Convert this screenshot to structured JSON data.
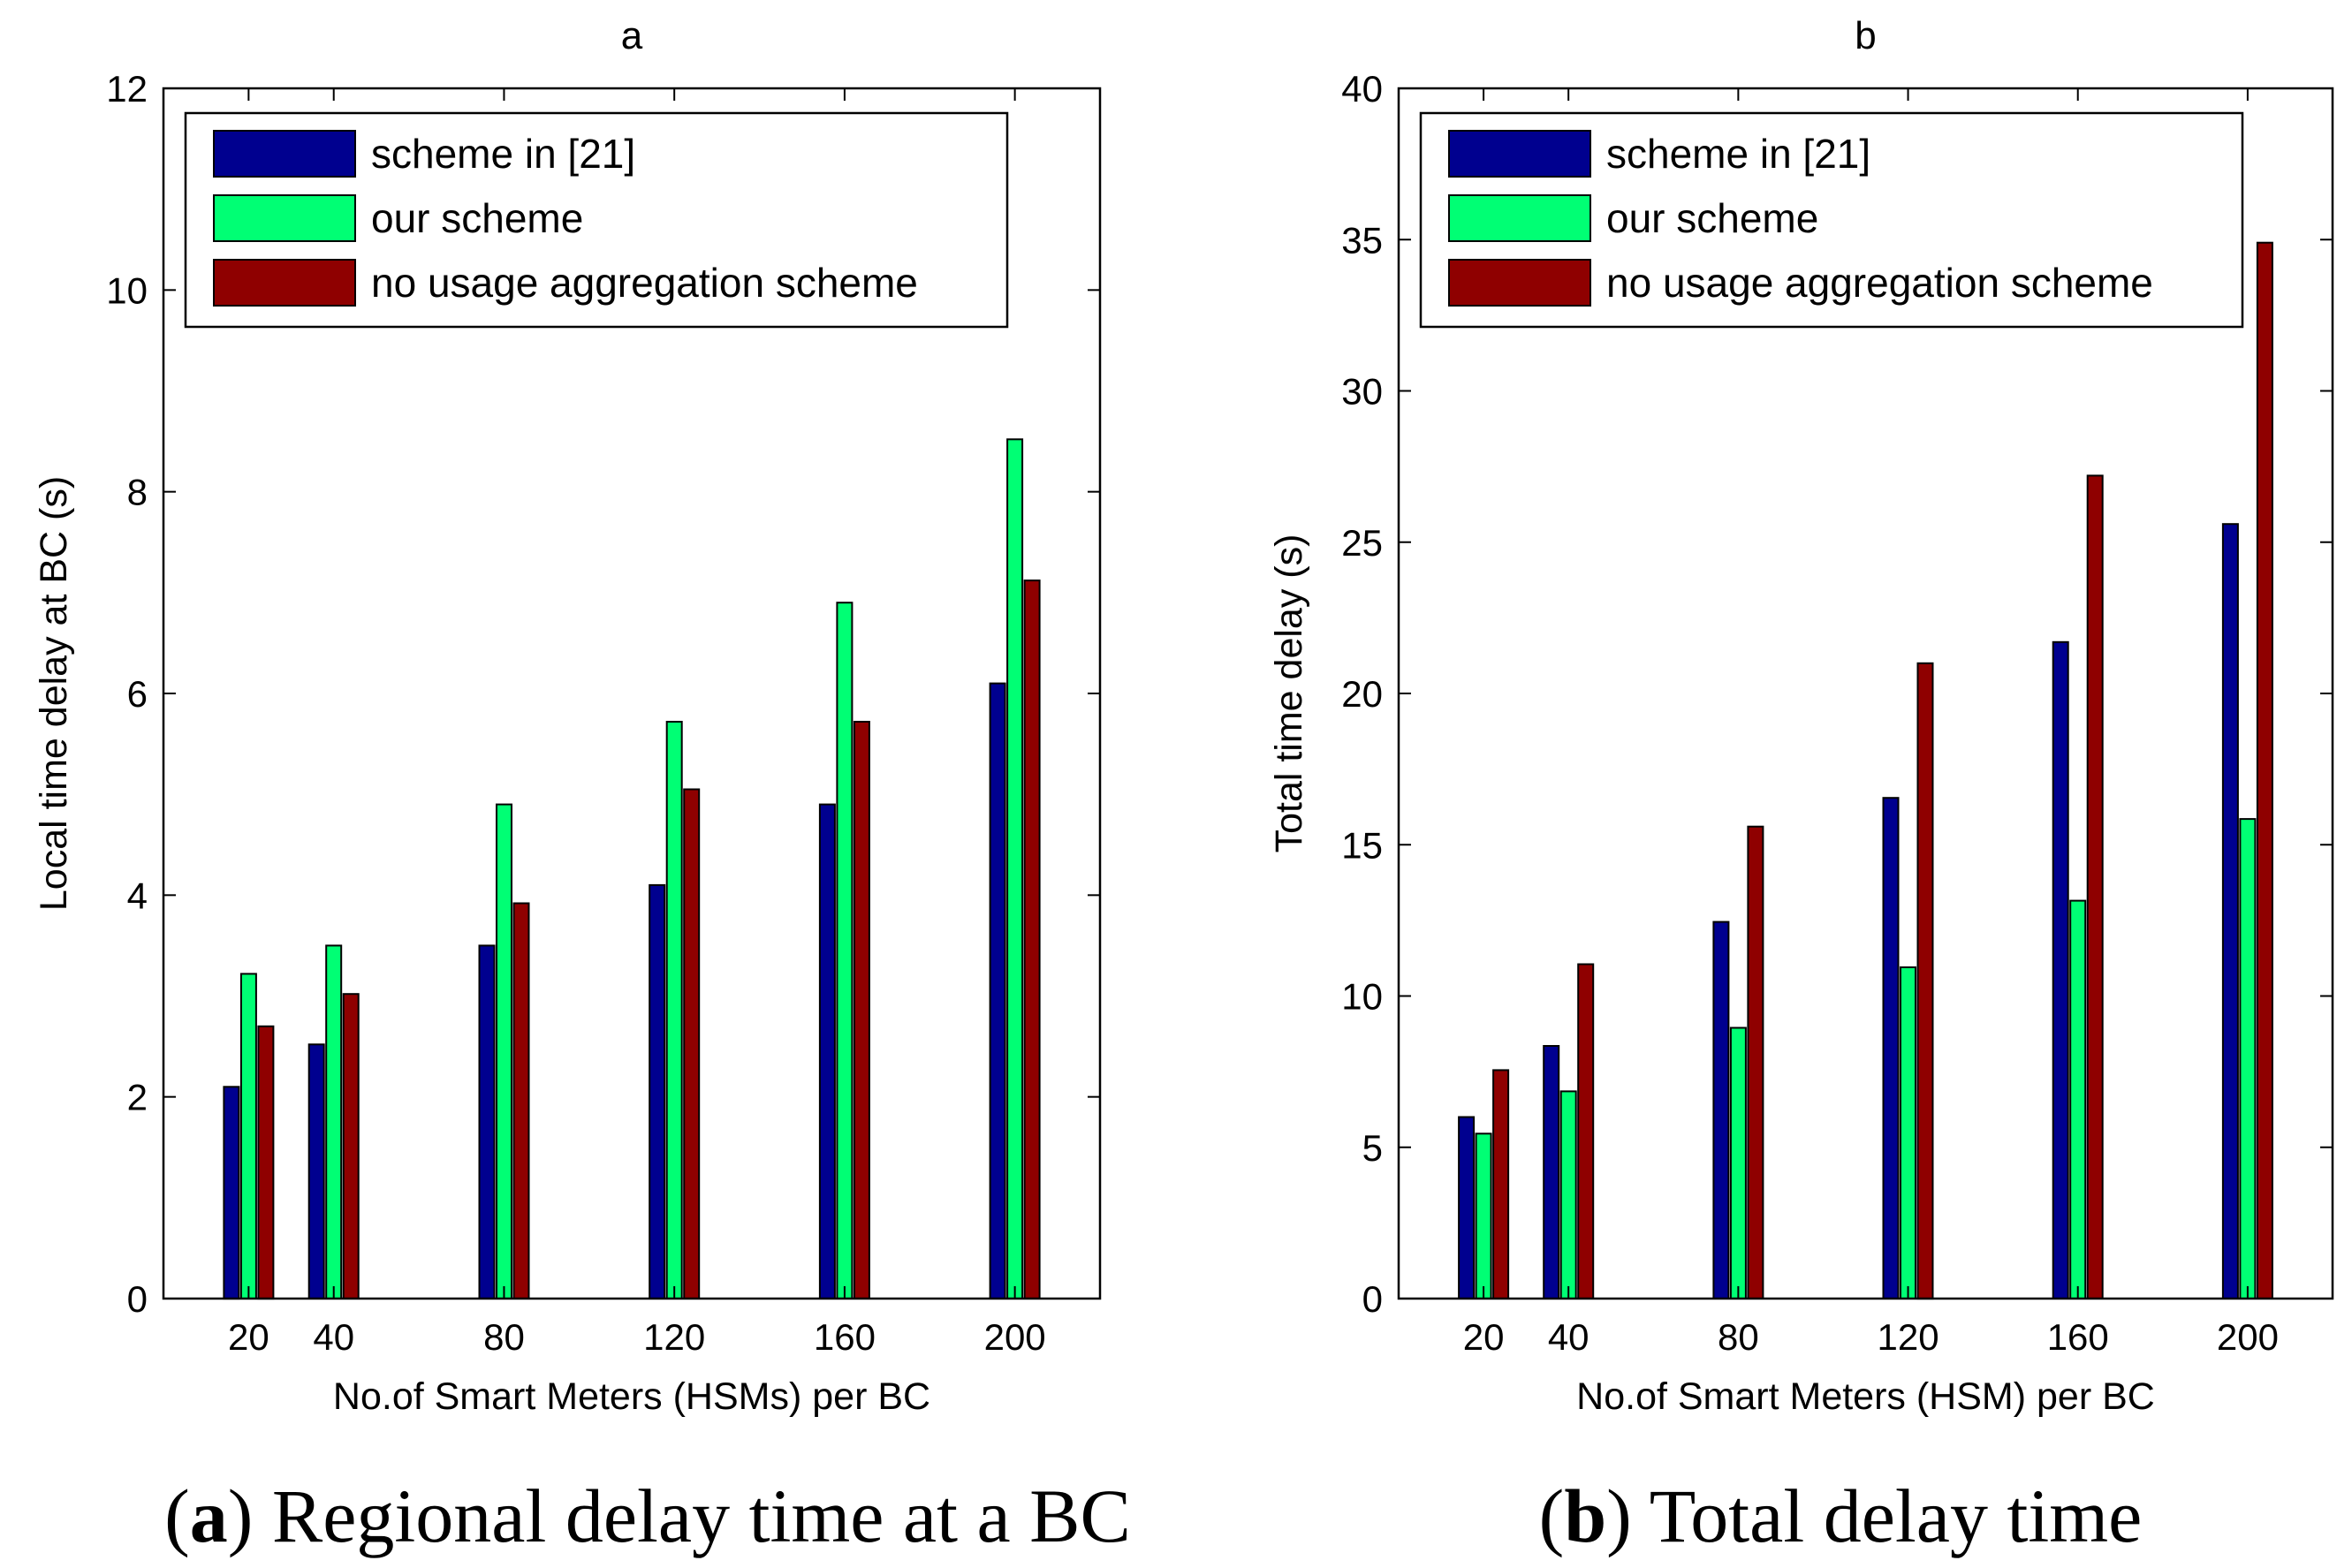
{
  "figure": {
    "captions": [
      {
        "letter": "a",
        "text": ") Regional delay time at a BC",
        "open": "("
      },
      {
        "letter": "b",
        "text": ") Total delay time",
        "open": "("
      }
    ]
  },
  "colors": {
    "scheme21": "#00008f",
    "our": "#00ff74",
    "noagg": "#8f0000"
  },
  "chart_data": [
    {
      "type": "bar",
      "title": "a",
      "xlabel": "No.of Smart Meters (HSMs) per BC",
      "ylabel": "Local time delay at BC (s)",
      "x": [
        20,
        40,
        80,
        120,
        160,
        200
      ],
      "categories": [
        "20",
        "40",
        "80",
        "120",
        "160",
        "200"
      ],
      "xlim": [
        0,
        220
      ],
      "ylim": [
        0,
        12
      ],
      "yticks": [
        "0",
        "2",
        "4",
        "6",
        "8",
        "10",
        "12"
      ],
      "ytick_values": [
        0,
        2,
        4,
        6,
        8,
        10,
        12
      ],
      "legend_position": "top-left",
      "series": [
        {
          "name": "scheme in [21]",
          "color": "#00008f",
          "values": [
            2.1,
            2.52,
            3.5,
            4.1,
            4.9,
            6.1
          ]
        },
        {
          "name": "our scheme",
          "color": "#00ff74",
          "values": [
            3.22,
            3.5,
            4.9,
            5.72,
            6.9,
            8.52
          ]
        },
        {
          "name": "no usage aggregation scheme",
          "color": "#8f0000",
          "values": [
            2.7,
            3.02,
            3.92,
            5.05,
            5.72,
            7.12
          ]
        }
      ]
    },
    {
      "type": "bar",
      "title": "b",
      "xlabel": "No.of Smart Meters (HSM) per BC",
      "ylabel": "Total time delay (s)",
      "x": [
        20,
        40,
        80,
        120,
        160,
        200
      ],
      "categories": [
        "20",
        "40",
        "80",
        "120",
        "160",
        "200"
      ],
      "xlim": [
        0,
        220
      ],
      "ylim": [
        0,
        40
      ],
      "yticks": [
        "0",
        "5",
        "10",
        "15",
        "20",
        "25",
        "30",
        "35",
        "40"
      ],
      "ytick_values": [
        0,
        5,
        10,
        15,
        20,
        25,
        30,
        35,
        40
      ],
      "legend_position": "top-left",
      "series": [
        {
          "name": "scheme in [21]",
          "color": "#00008f",
          "values": [
            6.0,
            8.35,
            12.45,
            16.55,
            21.7,
            25.6
          ]
        },
        {
          "name": "our scheme",
          "color": "#00ff74",
          "values": [
            5.45,
            6.85,
            8.95,
            10.95,
            13.15,
            15.85
          ]
        },
        {
          "name": "no usage aggregation scheme",
          "color": "#8f0000",
          "values": [
            7.55,
            11.05,
            15.6,
            21.0,
            27.2,
            34.9
          ]
        }
      ]
    }
  ]
}
